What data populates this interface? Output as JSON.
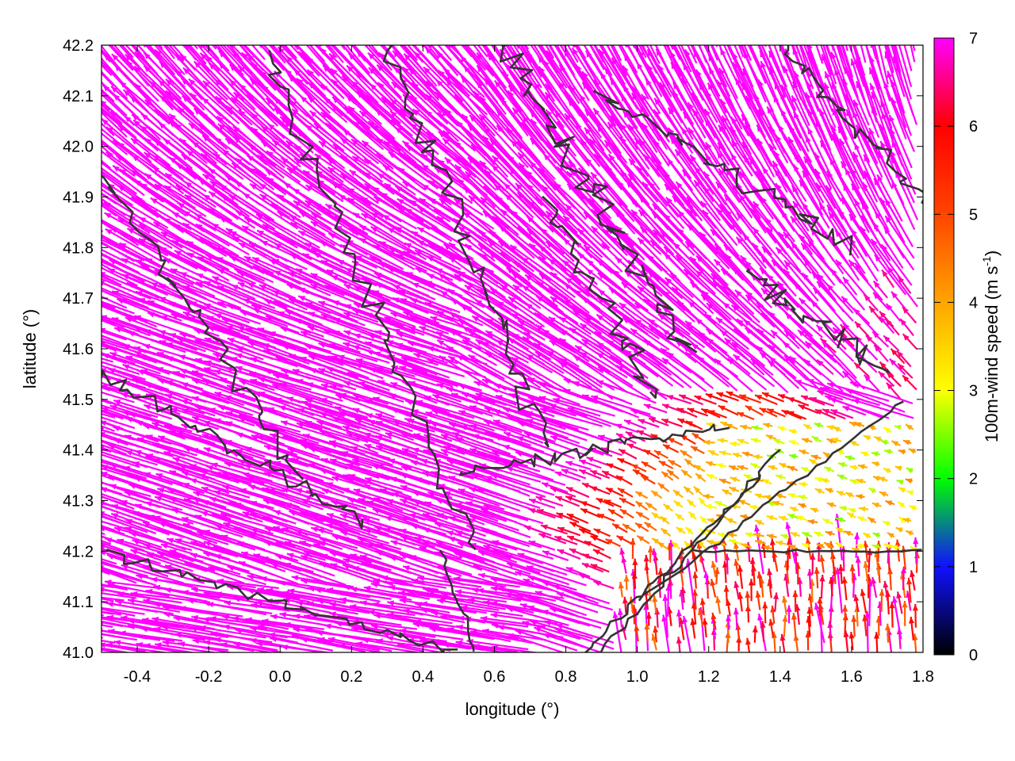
{
  "chart_data": {
    "type": "vector-field",
    "xlabel": "longitude (°)",
    "ylabel": "latitude (°)",
    "xlim": [
      -0.5,
      1.8
    ],
    "ylim": [
      41.0,
      42.2
    ],
    "xticks": [
      "-0.4",
      "-0.2",
      "0.0",
      "0.2",
      "0.4",
      "0.6",
      "0.8",
      "1.0",
      "1.2",
      "1.4",
      "1.6",
      "1.8"
    ],
    "yticks": [
      "41.0",
      "41.1",
      "41.2",
      "41.3",
      "41.4",
      "41.5",
      "41.6",
      "41.7",
      "41.8",
      "41.9",
      "42.0",
      "42.1",
      "42.2"
    ],
    "colorbar": {
      "label_main": "100m-wind speed (m s",
      "label_sup": "-1",
      "label_end": ")",
      "range": [
        0,
        7
      ],
      "ticks": [
        "0",
        "1",
        "2",
        "3",
        "4",
        "5",
        "6",
        "7"
      ],
      "palette": [
        "#000000",
        "#0000ff",
        "#00ff00",
        "#ffff00",
        "#ffa500",
        "#ff4500",
        "#ff0000",
        "#ff00ff"
      ]
    },
    "vectors_summary": "Wind vectors (0–7 m/s) pointing mostly towards west-northwest; speeds ≥7 m/s (magenta) over most of the domain, 1–6 m/s near 0.8–1.8°E, 41.0–41.5°N.",
    "contour_color": "#333333"
  }
}
